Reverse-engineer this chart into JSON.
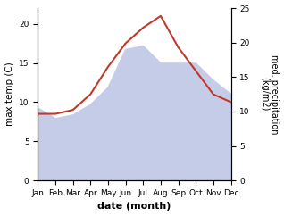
{
  "months": [
    "Jan",
    "Feb",
    "Mar",
    "Apr",
    "May",
    "Jun",
    "Jul",
    "Aug",
    "Sep",
    "Oct",
    "Nov",
    "Dec"
  ],
  "month_positions": [
    0,
    1,
    2,
    3,
    4,
    5,
    6,
    7,
    8,
    9,
    10,
    11
  ],
  "max_temp": [
    8.5,
    8.5,
    9.0,
    11.0,
    14.5,
    17.5,
    19.5,
    21.0,
    17.0,
    14.0,
    11.0,
    10.0
  ],
  "precipitation": [
    10.5,
    9.0,
    9.5,
    11.0,
    13.5,
    19.0,
    19.5,
    17.0,
    17.0,
    17.0,
    14.5,
    12.5
  ],
  "temp_color": "#c0392b",
  "precip_fill_color": "#c5cce8",
  "temp_ylim": [
    0,
    22
  ],
  "precip_ylim": [
    0,
    25
  ],
  "temp_yticks": [
    0,
    5,
    10,
    15,
    20
  ],
  "precip_yticks": [
    0,
    5,
    10,
    15,
    20,
    25
  ],
  "xlabel": "date (month)",
  "ylabel_left": "max temp (C)",
  "ylabel_right": "med. precipitation\n(kg/m2)",
  "background_color": "#ffffff"
}
